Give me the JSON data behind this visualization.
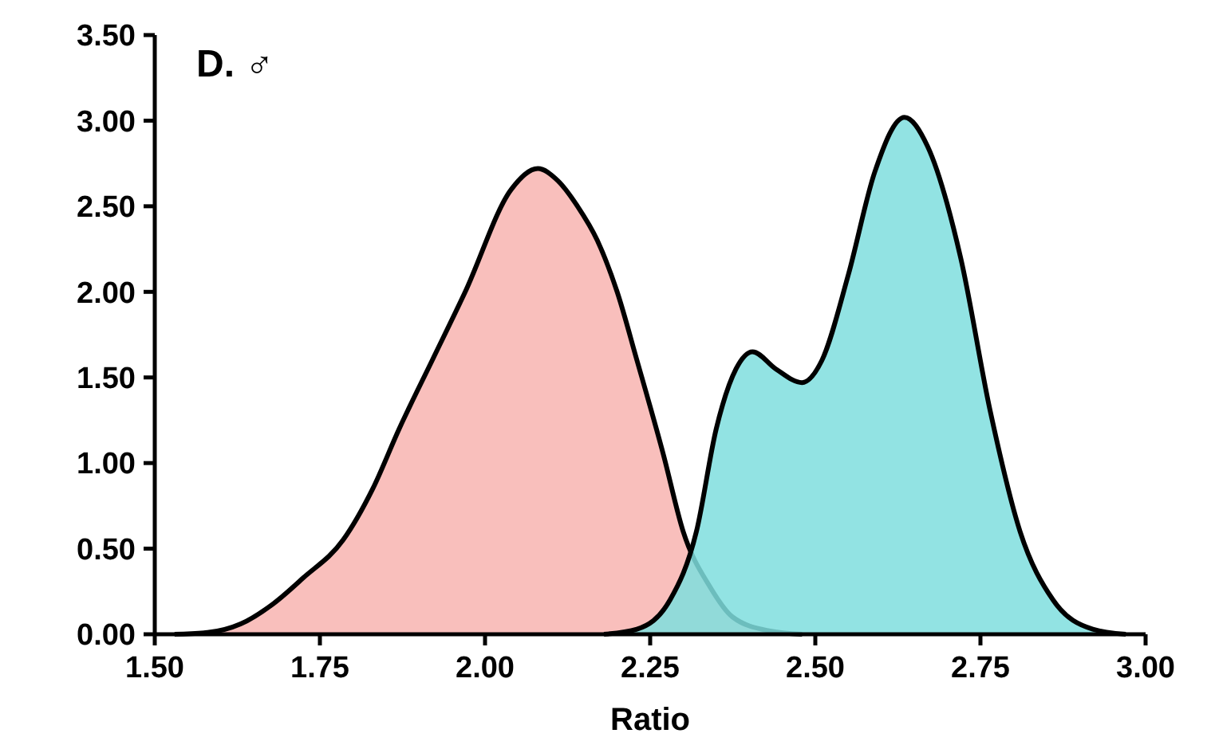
{
  "chart_data": {
    "type": "area",
    "title": "D. ♂",
    "xlabel": "Ratio",
    "xlim": [
      1.5,
      3.0
    ],
    "xticks": [
      {
        "value": 1.5,
        "label": "1.50"
      },
      {
        "value": 1.75,
        "label": "1.75"
      },
      {
        "value": 2.0,
        "label": "2.00"
      },
      {
        "value": 2.25,
        "label": "2.25"
      },
      {
        "value": 2.5,
        "label": "2.50"
      },
      {
        "value": 2.75,
        "label": "2.75"
      },
      {
        "value": 3.0,
        "label": "3.00"
      }
    ],
    "ylim": [
      0,
      3.5
    ],
    "yticks": [
      {
        "value": 0,
        "label": "0.00"
      },
      {
        "value": 0.5,
        "label": "0.50"
      },
      {
        "value": 1,
        "label": "1.00"
      },
      {
        "value": 1.5,
        "label": "1.50"
      },
      {
        "value": 2,
        "label": "2.00"
      },
      {
        "value": 2.5,
        "label": "2.50"
      },
      {
        "value": 3,
        "label": "3.00"
      },
      {
        "value": 3.5,
        "label": "3.50"
      }
    ],
    "grid": false,
    "series": [
      {
        "color": "#f8b4b0",
        "x": [
          1.53,
          1.58,
          1.63,
          1.68,
          1.725,
          1.785,
          1.83,
          1.87,
          1.92,
          1.97,
          2.04,
          2.08,
          2.11,
          2.14,
          2.17,
          2.2,
          2.23,
          2.27,
          2.3,
          2.34,
          2.375,
          2.43,
          2.48
        ],
        "values": [
          0,
          0.01,
          0.06,
          0.18,
          0.33,
          0.55,
          0.85,
          1.2,
          1.6,
          2.0,
          2.6,
          2.72,
          2.65,
          2.5,
          2.3,
          2.0,
          1.6,
          1.05,
          0.6,
          0.28,
          0.1,
          0.02,
          0
        ]
      },
      {
        "color": "#7fdede",
        "x": [
          2.18,
          2.23,
          2.28,
          2.32,
          2.35,
          2.38,
          2.405,
          2.44,
          2.48,
          2.51,
          2.55,
          2.59,
          2.635,
          2.67,
          2.72,
          2.765,
          2.81,
          2.86,
          2.92,
          2.97
        ],
        "values": [
          0,
          0.03,
          0.2,
          0.6,
          1.2,
          1.55,
          1.65,
          1.55,
          1.47,
          1.6,
          2.1,
          2.7,
          3.02,
          2.85,
          2.2,
          1.3,
          0.6,
          0.2,
          0.03,
          0
        ]
      }
    ]
  }
}
